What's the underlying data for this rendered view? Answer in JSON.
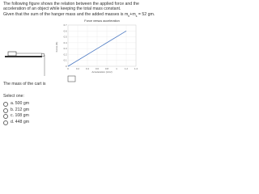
{
  "question": {
    "intro": "The following figure shows the relation between the applied force and the acceleration of an object while keeping the total mass constant.",
    "given": "Given that the sum of the hanger mass and the added masses is",
    "formula": [
      "m",
      "h",
      "+m",
      "s",
      "= 52 gm."
    ],
    "prompt": "The mass of the cart is",
    "select": "Select one:",
    "options": [
      "a. 500 gm",
      "b. 212 gm",
      "c. 108 gm",
      "d. 448 gm"
    ]
  },
  "chart": {
    "type": "line",
    "title": "Force versus acceleration",
    "x_label": "Acceleration (m/s²)",
    "y_label": "Force (N)",
    "x": [
      0,
      1.2
    ],
    "values": [
      0,
      0.6
    ],
    "color": "#4a78c2",
    "xlim": [
      0,
      1.4
    ],
    "xticks": [
      0,
      0.2,
      0.4,
      0.6,
      0.8,
      1,
      1.2,
      1.4
    ],
    "ylim": [
      0,
      0.7
    ],
    "yticks": [
      0,
      0.1,
      0.2,
      0.3,
      0.4,
      0.5,
      0.6,
      0.7
    ],
    "grid": true
  }
}
